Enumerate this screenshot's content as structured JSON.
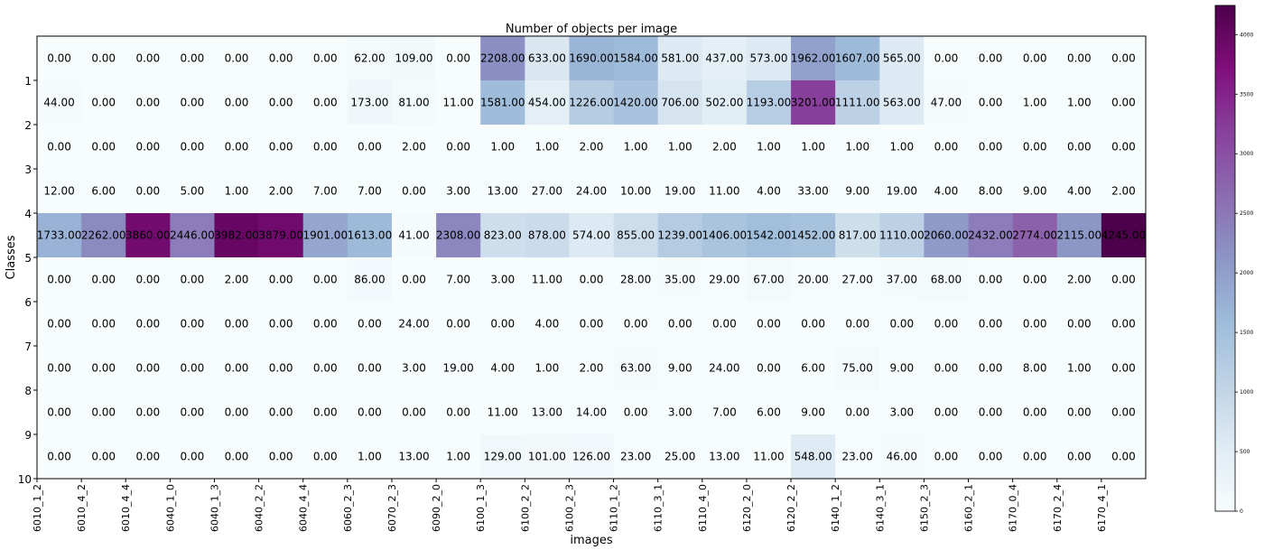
{
  "chart_data": {
    "type": "heatmap",
    "title": "Number of objects per image",
    "xlabel": "images",
    "ylabel": "Classes",
    "x_tick_labels": [
      "6010_1_2",
      "6010_4_2",
      "6010_4_4",
      "6040_1_0",
      "6040_1_3",
      "6040_2_2",
      "6040_4_4",
      "6060_2_3",
      "6070_2_3",
      "6090_2_0",
      "6100_1_3",
      "6100_2_2",
      "6100_2_3",
      "6110_1_2",
      "6110_3_1",
      "6110_4_0",
      "6120_2_0",
      "6120_2_2",
      "6140_1_2",
      "6140_3_1",
      "6150_2_3",
      "6160_2_1",
      "6170_0_4",
      "6170_2_4",
      "6170_4_1"
    ],
    "y_tick_labels": [
      "1",
      "2",
      "3",
      "4",
      "5",
      "6",
      "7",
      "8",
      "9",
      "10"
    ],
    "value_format": "two-decimals",
    "values": [
      [
        0,
        0,
        0,
        0,
        0,
        0,
        0,
        62,
        109,
        0,
        2208,
        633,
        1690,
        1584,
        581,
        437,
        573,
        1962,
        1607,
        565,
        0,
        0,
        0,
        0,
        0
      ],
      [
        44,
        0,
        0,
        0,
        0,
        0,
        0,
        173,
        81,
        11,
        1581,
        454,
        1226,
        1420,
        706,
        502,
        1193,
        3201,
        1111,
        563,
        47,
        0,
        1,
        1,
        0
      ],
      [
        0,
        0,
        0,
        0,
        0,
        0,
        0,
        0,
        2,
        0,
        1,
        1,
        2,
        1,
        1,
        2,
        1,
        1,
        1,
        1,
        0,
        0,
        0,
        0,
        0
      ],
      [
        12,
        6,
        0,
        5,
        1,
        2,
        7,
        7,
        0,
        3,
        13,
        27,
        24,
        10,
        19,
        11,
        4,
        33,
        9,
        19,
        4,
        8,
        9,
        4,
        2
      ],
      [
        1733,
        2262,
        3860,
        2446,
        3982,
        3879,
        1901,
        1613,
        41,
        2308,
        823,
        878,
        574,
        855,
        1239,
        1406,
        1542,
        1452,
        817,
        1110,
        2060,
        2432,
        2774,
        2115,
        4245
      ],
      [
        0,
        0,
        0,
        0,
        2,
        0,
        0,
        86,
        0,
        7,
        3,
        11,
        0,
        28,
        35,
        29,
        67,
        20,
        27,
        37,
        68,
        0,
        0,
        2,
        0
      ],
      [
        0,
        0,
        0,
        0,
        0,
        0,
        0,
        0,
        24,
        0,
        0,
        4,
        0,
        0,
        0,
        0,
        0,
        0,
        0,
        0,
        0,
        0,
        0,
        0,
        0
      ],
      [
        0,
        0,
        0,
        0,
        0,
        0,
        0,
        0,
        3,
        19,
        4,
        1,
        2,
        63,
        9,
        24,
        0,
        6,
        75,
        9,
        0,
        0,
        8,
        1,
        0
      ],
      [
        0,
        0,
        0,
        0,
        0,
        0,
        0,
        0,
        0,
        0,
        11,
        13,
        14,
        0,
        3,
        7,
        6,
        9,
        0,
        3,
        0,
        0,
        0,
        0,
        0
      ],
      [
        0,
        0,
        0,
        0,
        0,
        0,
        0,
        1,
        13,
        1,
        129,
        101,
        126,
        23,
        25,
        13,
        11,
        548,
        23,
        46,
        0,
        0,
        0,
        0,
        0
      ]
    ],
    "colorbar": {
      "colormap": "BuPu",
      "range": [
        0,
        4245
      ],
      "ticks": [
        0,
        500,
        1000,
        1500,
        2000,
        2500,
        3000,
        3500,
        4000
      ]
    },
    "grid": false,
    "colors": {
      "low": "#f7fcfd",
      "mid": "#8c96c6",
      "high": "#4d004b"
    }
  }
}
